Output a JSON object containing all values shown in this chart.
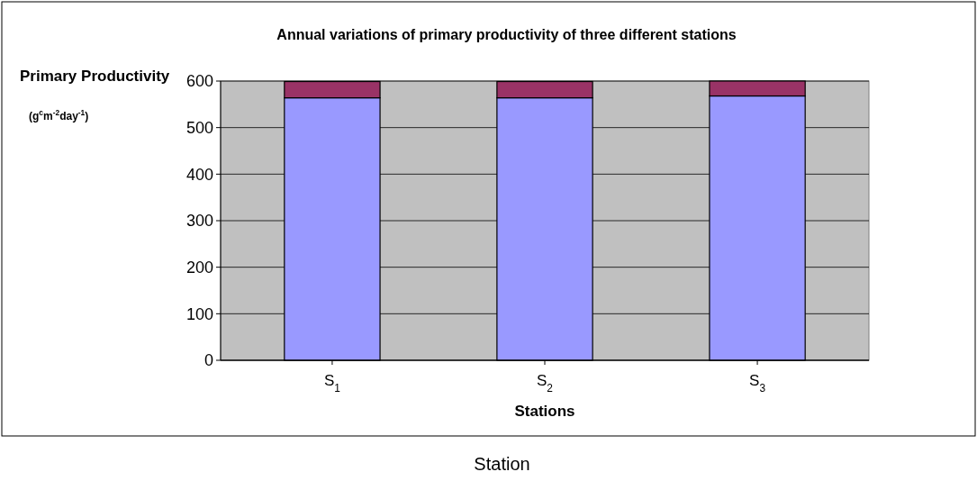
{
  "chart_data": {
    "type": "bar",
    "title": "Annual variations of primary productivity of three different stations",
    "ylabel": "Primary Productivity (g$^{c}$m$^{-2}$day$^{-1}$)",
    "xlabel": "Stations",
    "categories": [
      "S$_{1}$",
      "S$_{2}$",
      "S$_{3}$"
    ],
    "stacked": true,
    "series": [
      {
        "color": "#9999ff",
        "values": [
          564,
          564,
          568
        ]
      },
      {
        "color": "#993366",
        "values": [
          35,
          35,
          32
        ]
      }
    ],
    "ylim": [
      0,
      600
    ],
    "yticks": [
      0,
      100,
      200,
      300,
      400,
      500,
      600
    ],
    "grid": "y",
    "annotations": [
      "Station"
    ]
  }
}
